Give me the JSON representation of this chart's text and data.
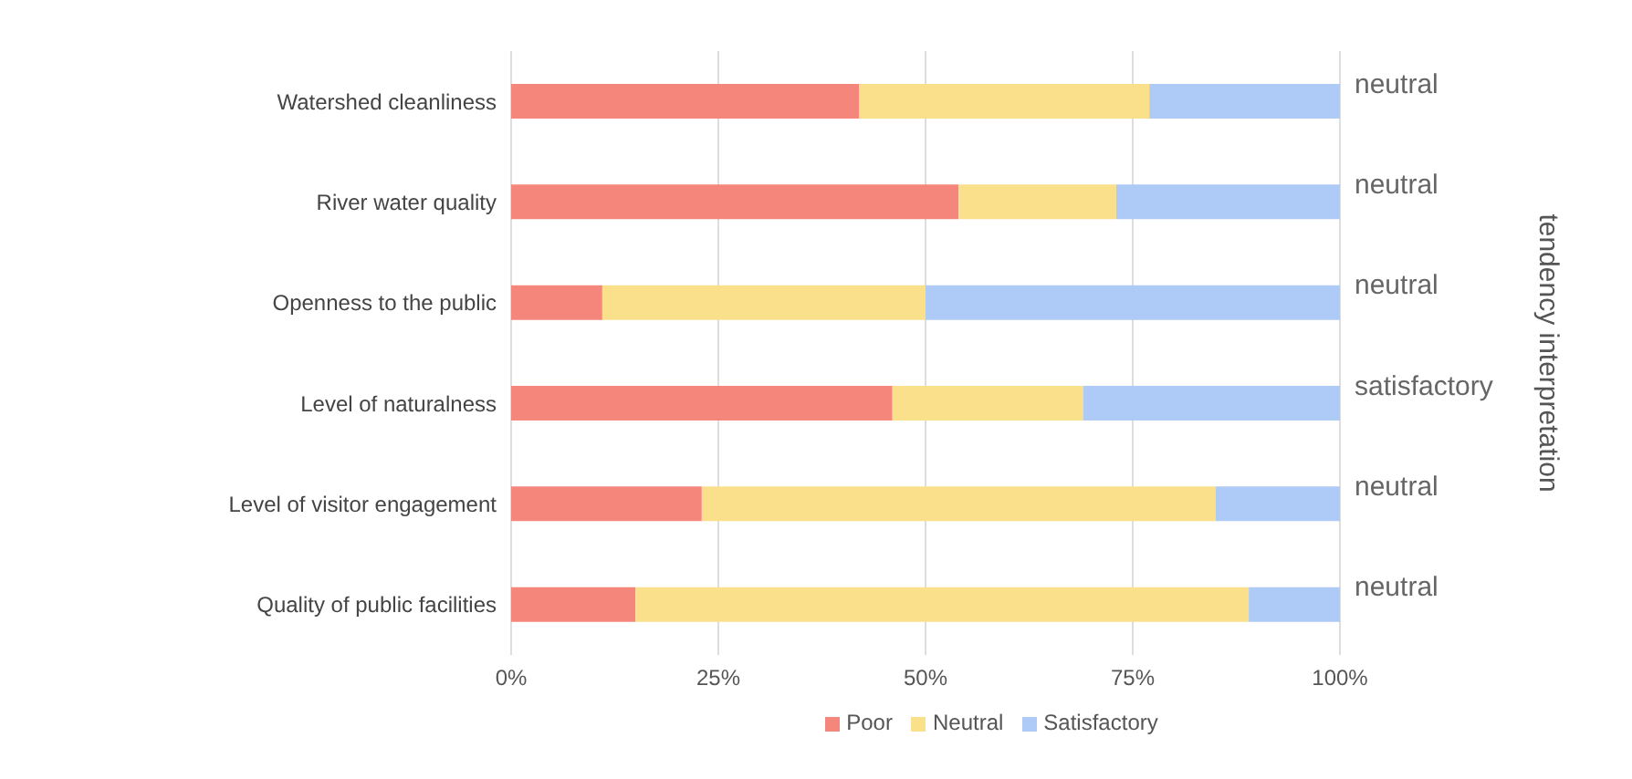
{
  "chart_data": {
    "type": "bar",
    "orientation": "horizontal",
    "stacked": true,
    "categories": [
      "Watershed cleanliness",
      "River water quality",
      "Openness to the public",
      "Level of naturalness",
      "Level of visitor engagement",
      "Quality of public facilities"
    ],
    "y2_categories": [
      "neutral",
      "neutral",
      "neutral",
      "satisfactory",
      "neutral",
      "neutral"
    ],
    "annotations": [
      "tendency interpretation"
    ],
    "series": [
      {
        "name": "Poor",
        "color": "#f4867c",
        "values": [
          42,
          54,
          11,
          46,
          23,
          15
        ]
      },
      {
        "name": "Neutral",
        "color": "#fbe08c",
        "values": [
          35,
          19,
          39,
          23,
          62,
          74
        ]
      },
      {
        "name": "Satisfactory",
        "color": "#aecaf6",
        "values": [
          23,
          27,
          50,
          31,
          15,
          11
        ]
      }
    ],
    "xlim": [
      0,
      100
    ],
    "xticks": [
      {
        "value": 0,
        "label": "0%"
      },
      {
        "value": 25,
        "label": "25%"
      },
      {
        "value": 50,
        "label": "50%"
      },
      {
        "value": 75,
        "label": "75%"
      },
      {
        "value": 100,
        "label": "100%"
      }
    ],
    "grid": "x",
    "legend": "bottom"
  }
}
